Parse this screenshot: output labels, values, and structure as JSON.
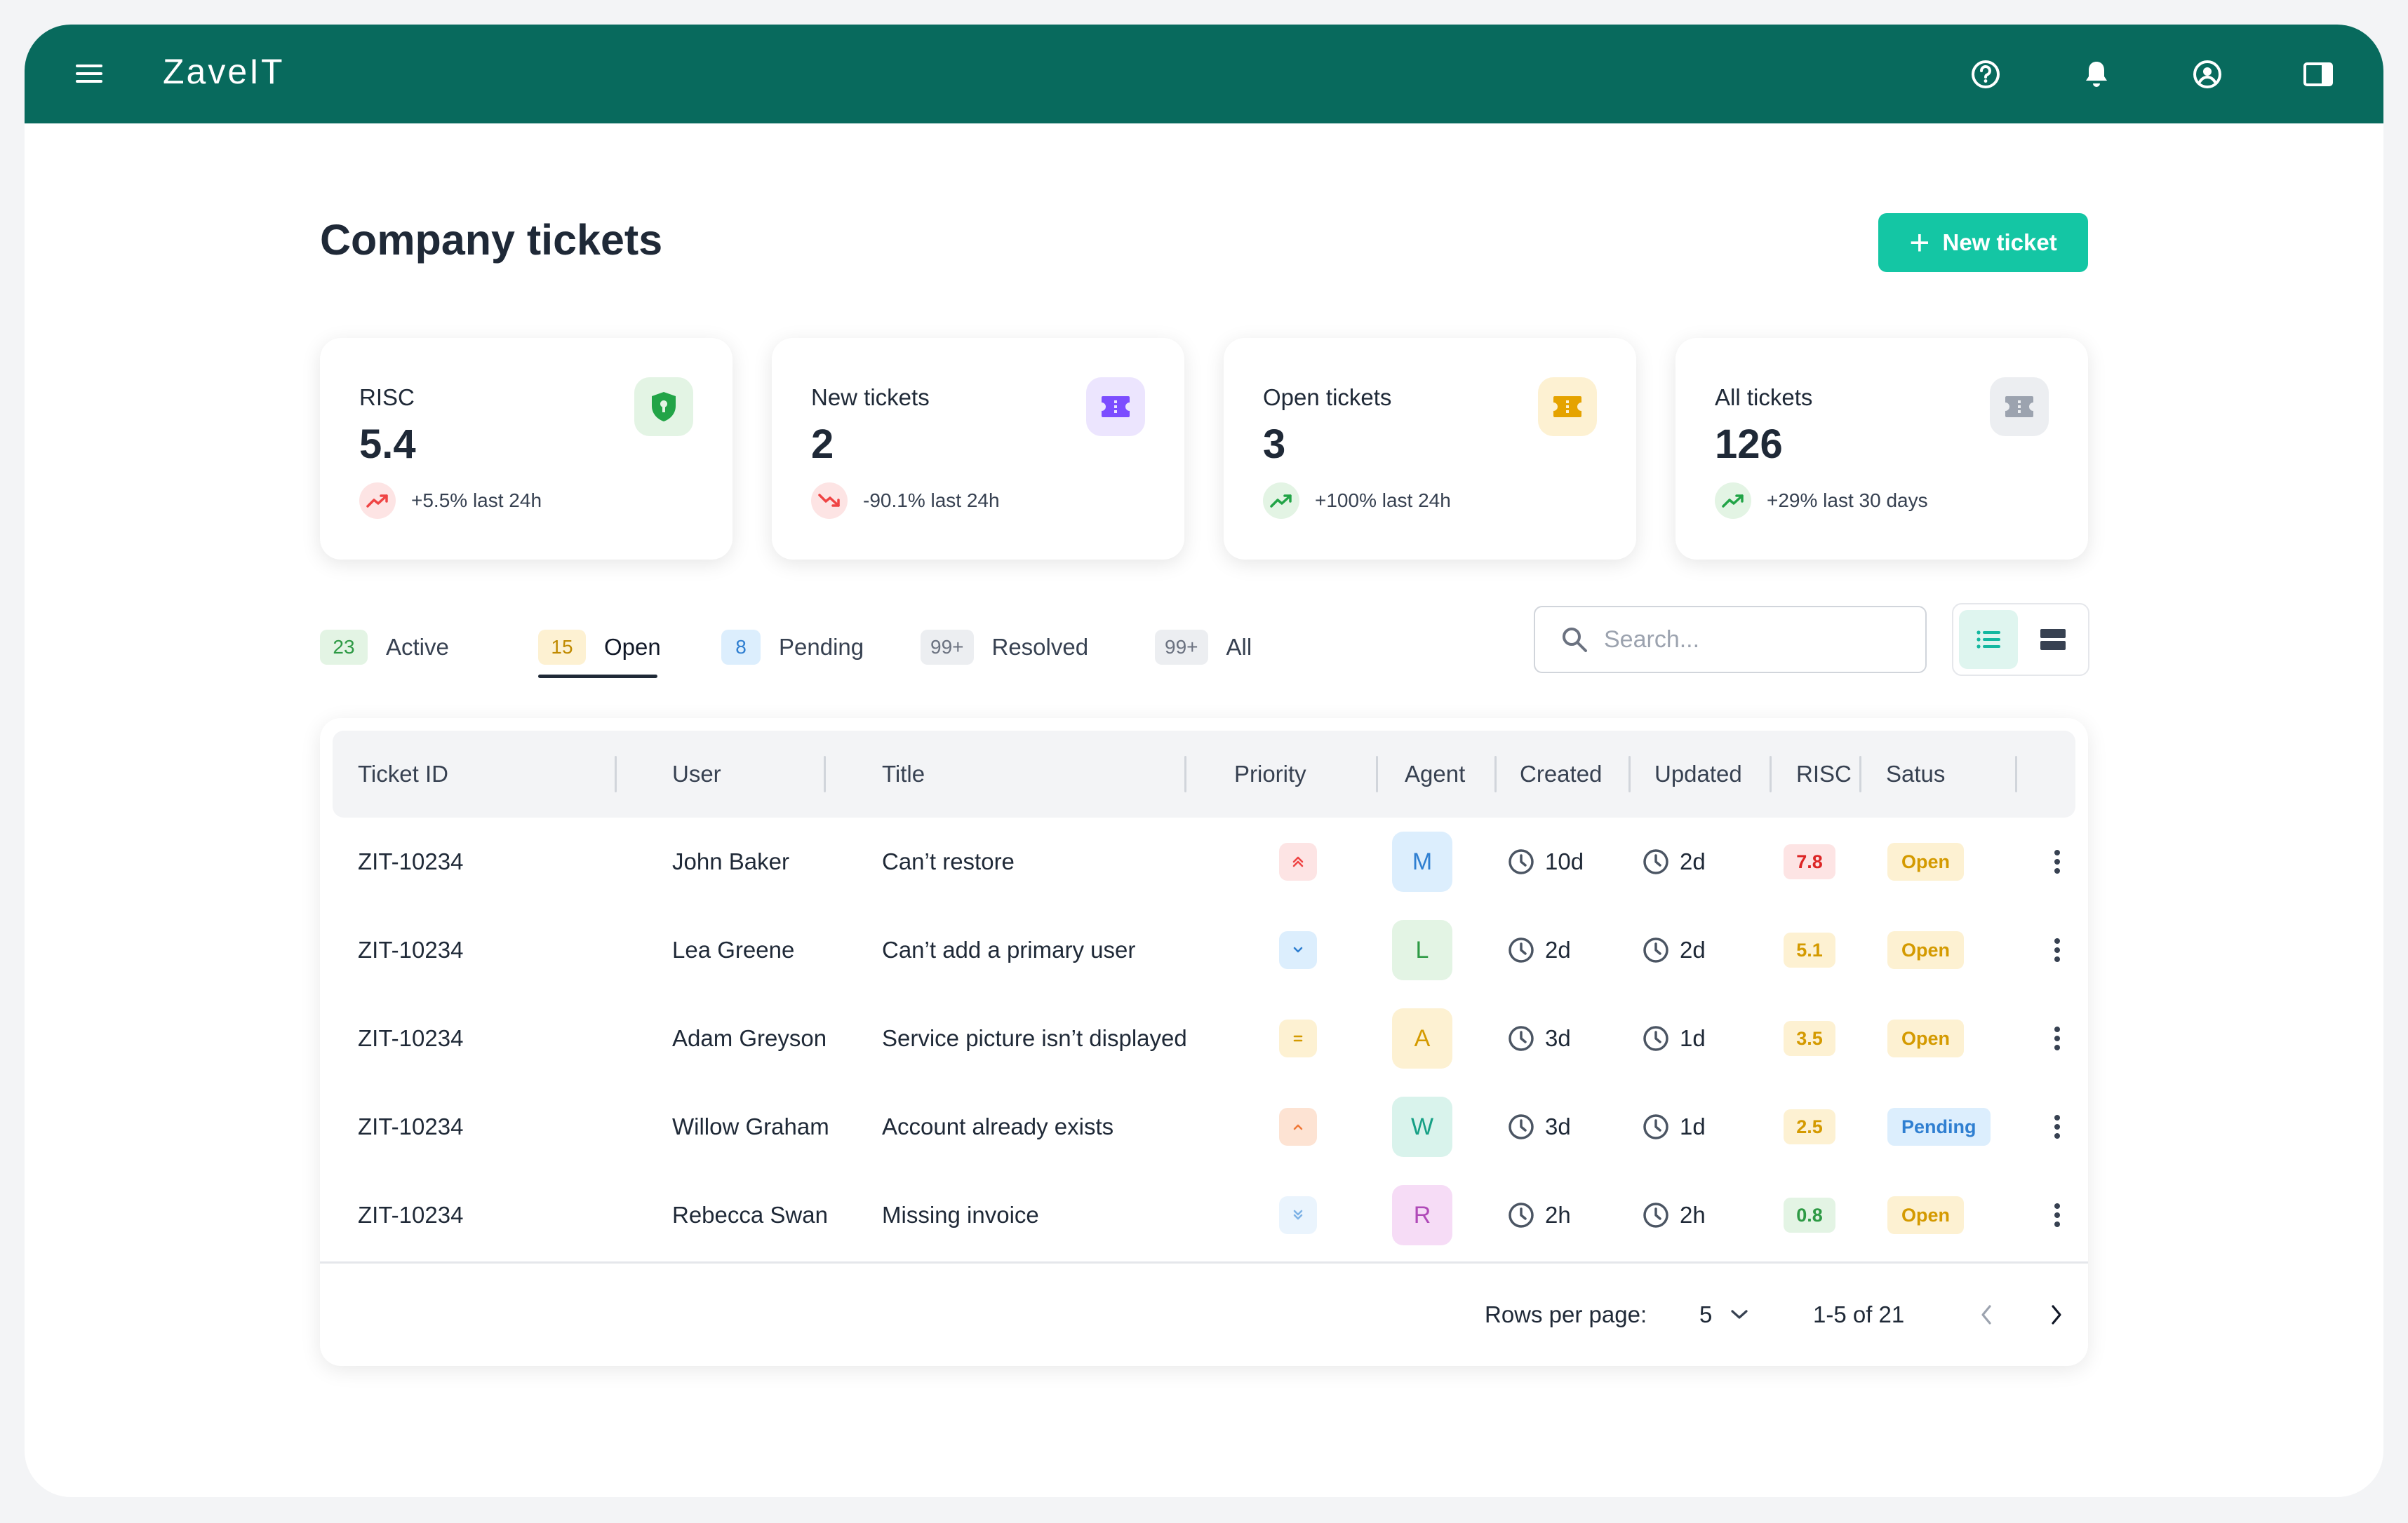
{
  "app": {
    "name": "ZaveIT"
  },
  "topbar": {
    "icons": [
      "help-icon",
      "bell-icon",
      "user-circle-icon",
      "sidebar-panel-icon"
    ]
  },
  "page": {
    "title": "Company tickets",
    "new_ticket_label": "New ticket"
  },
  "cards": [
    {
      "label": "RISC",
      "value": "5.4",
      "trend": "+5.5% last 24h",
      "direction": "up",
      "trend_color": "#ef4444",
      "icon": "shield-icon",
      "icon_color": "#22a447",
      "icon_bg": "#e3f4e4"
    },
    {
      "label": "New tickets",
      "value": "2",
      "trend": "-90.1% last 24h",
      "direction": "down",
      "trend_color": "#ef4444",
      "icon": "ticket-icon",
      "icon_color": "#7c4dff",
      "icon_bg": "#ece5fe"
    },
    {
      "label": "Open tickets",
      "value": "3",
      "trend": "+100% last 24h",
      "direction": "up",
      "trend_color": "#22a447",
      "icon": "ticket-icon",
      "icon_color": "#e5a300",
      "icon_bg": "#fdf1d2"
    },
    {
      "label": "All tickets",
      "value": "126",
      "trend": "+29% last 30 days",
      "direction": "up",
      "trend_color": "#22a447",
      "icon": "ticket-icon",
      "icon_color": "#9ca3af",
      "icon_bg": "#eceef1"
    }
  ],
  "tabs": [
    {
      "count": "23",
      "label": "Active",
      "count_bg": "#e3f4e4",
      "count_color": "#2e9a45"
    },
    {
      "count": "15",
      "label": "Open",
      "count_bg": "#fdf1d2",
      "count_color": "#c08a00",
      "selected": true
    },
    {
      "count": "8",
      "label": "Pending",
      "count_bg": "#dceefd",
      "count_color": "#2f7fd1"
    },
    {
      "count": "99+",
      "label": "Resolved",
      "count_bg": "#eceef1",
      "count_color": "#6b7280"
    },
    {
      "count": "99+",
      "label": "All",
      "count_bg": "#eceef1",
      "count_color": "#6b7280"
    }
  ],
  "search": {
    "placeholder": "Search..."
  },
  "table": {
    "columns": [
      "Ticket ID",
      "User",
      "Title",
      "Priority",
      "Agent",
      "Created",
      "Updated",
      "RISC",
      "Satus"
    ],
    "rows": [
      {
        "id": "ZIT-10234",
        "user": "John Baker",
        "title": "Can’t restore",
        "priority": "highest",
        "agent": "M",
        "created": "10d",
        "updated": "2d",
        "risc": "7.8",
        "status": "Open"
      },
      {
        "id": "ZIT-10234",
        "user": "Lea Greene",
        "title": "Can’t add a primary user",
        "priority": "low",
        "agent": "L",
        "created": "2d",
        "updated": "2d",
        "risc": "5.1",
        "status": "Open"
      },
      {
        "id": "ZIT-10234",
        "user": "Adam Greyson",
        "title": "Service picture isn’t displayed",
        "priority": "medium",
        "agent": "A",
        "created": "3d",
        "updated": "1d",
        "risc": "3.5",
        "status": "Open"
      },
      {
        "id": "ZIT-10234",
        "user": "Willow Graham",
        "title": "Account already exists",
        "priority": "high",
        "agent": "W",
        "created": "3d",
        "updated": "1d",
        "risc": "2.5",
        "status": "Pending"
      },
      {
        "id": "ZIT-10234",
        "user": "Rebecca Swan",
        "title": "Missing invoice",
        "priority": "lowest",
        "agent": "R",
        "created": "2h",
        "updated": "2h",
        "risc": "0.8",
        "status": "Open"
      }
    ]
  },
  "pagination": {
    "rows_per_page_label": "Rows per page:",
    "rows_per_page": "5",
    "range": "1-5 of 21"
  },
  "colors": {
    "topbar": "#086a5d",
    "accent": "#14c6a4"
  }
}
